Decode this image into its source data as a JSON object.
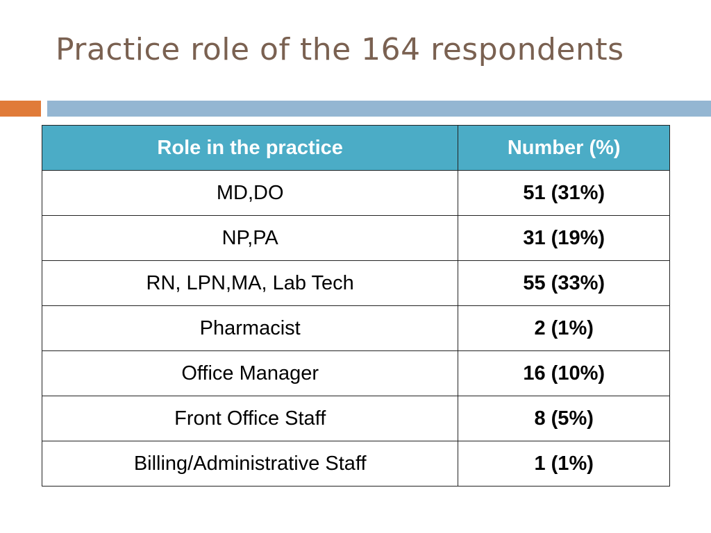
{
  "slide": {
    "title": "Practice role of the 164 respondents"
  },
  "colors": {
    "title": "#7a6151",
    "accent_orange": "#e07b39",
    "accent_blue": "#94b6d2",
    "header_fill": "#4bacc6"
  },
  "table": {
    "headers": [
      "Role in the practice",
      "Number (%)"
    ],
    "rows": [
      {
        "role": "MD,DO",
        "number": "51 (31%)"
      },
      {
        "role": "NP,PA",
        "number": "31 (19%)"
      },
      {
        "role": "RN, LPN,MA, Lab Tech",
        "number": "55 (33%)"
      },
      {
        "role": "Pharmacist",
        "number": "2 (1%)"
      },
      {
        "role": "Office Manager",
        "number": "16 (10%)"
      },
      {
        "role": "Front Office Staff",
        "number": "8 (5%)"
      },
      {
        "role": "Billing/Administrative Staff",
        "number": "1 (1%)"
      }
    ]
  }
}
